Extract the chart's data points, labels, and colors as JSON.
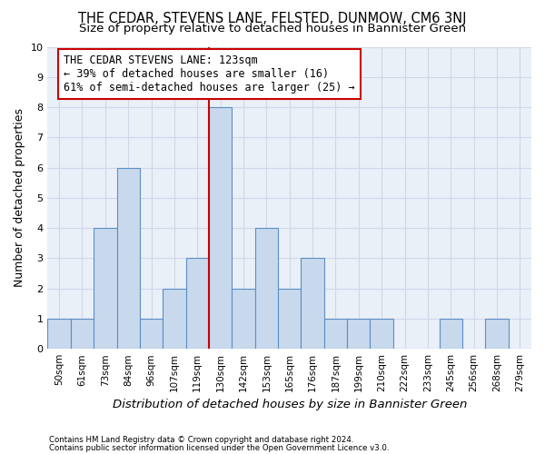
{
  "title": "THE CEDAR, STEVENS LANE, FELSTED, DUNMOW, CM6 3NJ",
  "subtitle": "Size of property relative to detached houses in Bannister Green",
  "xlabel": "Distribution of detached houses by size in Bannister Green",
  "ylabel": "Number of detached properties",
  "categories": [
    "50sqm",
    "61sqm",
    "73sqm",
    "84sqm",
    "96sqm",
    "107sqm",
    "119sqm",
    "130sqm",
    "142sqm",
    "153sqm",
    "165sqm",
    "176sqm",
    "187sqm",
    "199sqm",
    "210sqm",
    "222sqm",
    "233sqm",
    "245sqm",
    "256sqm",
    "268sqm",
    "279sqm"
  ],
  "values": [
    1,
    1,
    4,
    6,
    1,
    2,
    3,
    8,
    2,
    4,
    2,
    3,
    1,
    1,
    1,
    0,
    0,
    1,
    0,
    1,
    0
  ],
  "bar_color": "#c9d9ed",
  "bar_edge_color": "#5b8ec4",
  "red_line_index": 6.5,
  "annotation_text": "THE CEDAR STEVENS LANE: 123sqm\n← 39% of detached houses are smaller (16)\n61% of semi-detached houses are larger (25) →",
  "annotation_box_color": "#ffffff",
  "annotation_box_edge": "#cc0000",
  "ylim": [
    0,
    10
  ],
  "yticks": [
    0,
    1,
    2,
    3,
    4,
    5,
    6,
    7,
    8,
    9,
    10
  ],
  "grid_color": "#d0d8e8",
  "background_color": "#eaf0f8",
  "footer1": "Contains HM Land Registry data © Crown copyright and database right 2024.",
  "footer2": "Contains public sector information licensed under the Open Government Licence v3.0.",
  "title_fontsize": 10.5,
  "subtitle_fontsize": 9.5,
  "axis_label_fontsize": 9,
  "tick_fontsize": 7.5,
  "annotation_fontsize": 8.5
}
